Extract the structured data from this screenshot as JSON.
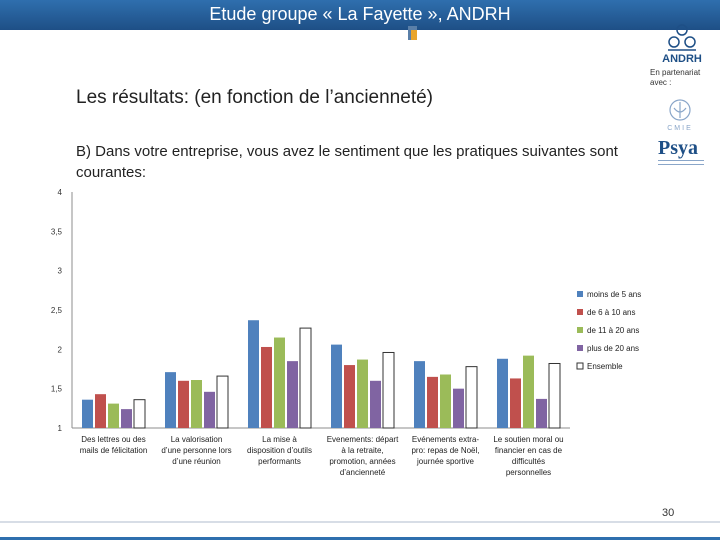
{
  "header": {
    "title": "Etude groupe « La Fayette », ANDRH"
  },
  "logos": {
    "andrh": "ANDRH",
    "psya": "Psya",
    "cmie": "CMIE"
  },
  "partner_text": "En partenariat avec :",
  "subtitle": "Les résultats: (en fonction de l’ancienneté)",
  "question": "B) Dans votre entreprise, vous avez le sentiment que les pratiques suivantes sont courantes:",
  "page_number": "30",
  "colors": {
    "header": "#2f6fae",
    "accent": "#e8a52c"
  },
  "chart_data": {
    "type": "bar",
    "ylim": [
      1,
      4
    ],
    "yticks": [
      "1",
      "1,5",
      "2",
      "2,5",
      "3",
      "3,5",
      "4"
    ],
    "grid": false,
    "legend_position": "right",
    "categories": [
      [
        "Des lettres ou des",
        "mails de félicitation"
      ],
      [
        "La valorisation",
        "d’une personne lors",
        "d’une réunion"
      ],
      [
        "La mise à",
        "disposition d’outils",
        "performants"
      ],
      [
        "Evenements: départ",
        "à la retraite,",
        "promotion, années",
        "d’ancienneté"
      ],
      [
        "Evénements extra-",
        "pro: repas de Noël,",
        "journée sportive"
      ],
      [
        "Le soutien moral ou",
        "financier en cas de",
        "difficultés",
        "personnelles"
      ]
    ],
    "series": [
      {
        "name": "moins de 5 ans",
        "color": "#4f81bd",
        "values": [
          1.36,
          1.71,
          2.37,
          2.06,
          1.85,
          1.88
        ]
      },
      {
        "name": "de 6 à 10 ans",
        "color": "#c0504d",
        "values": [
          1.43,
          1.6,
          2.03,
          1.8,
          1.65,
          1.63
        ]
      },
      {
        "name": "de 11 à 20 ans",
        "color": "#9bbb59",
        "values": [
          1.31,
          1.61,
          2.15,
          1.87,
          1.68,
          1.92
        ]
      },
      {
        "name": "plus de 20 ans",
        "color": "#8064a2",
        "values": [
          1.24,
          1.46,
          1.85,
          1.6,
          1.5,
          1.37
        ]
      },
      {
        "name": "Ensemble",
        "color": "#ffffff",
        "values": [
          1.36,
          1.66,
          2.27,
          1.96,
          1.78,
          1.82
        ]
      }
    ]
  }
}
